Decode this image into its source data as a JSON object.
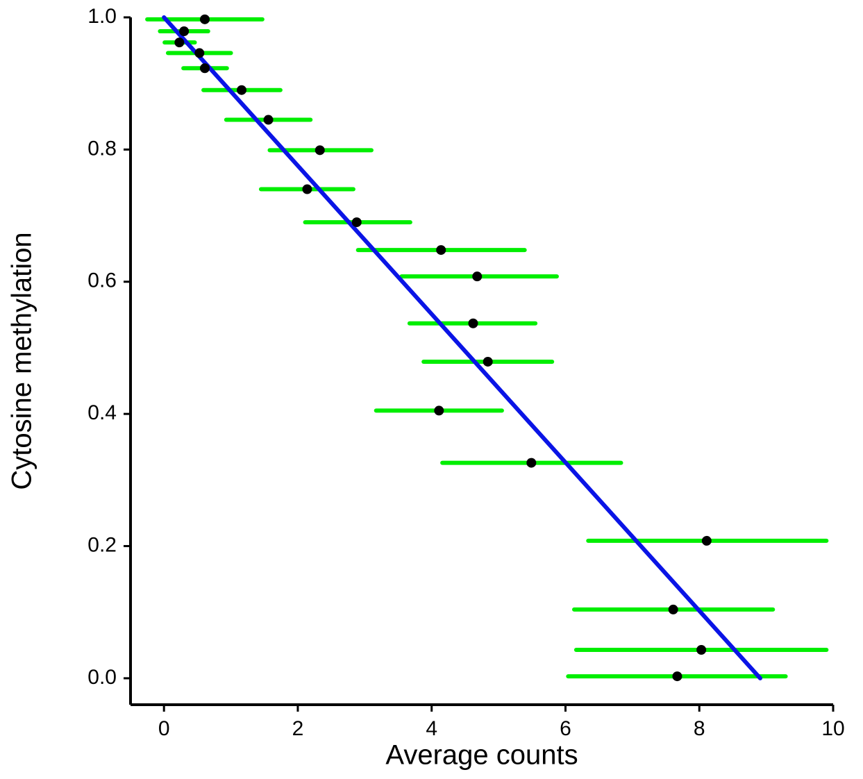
{
  "chart_data": {
    "type": "scatter",
    "x_label": "Average counts",
    "y_label": "Cytosine methylation",
    "xlim": [
      -0.5,
      10
    ],
    "ylim": [
      -0.04,
      1.0
    ],
    "xticks": [
      0,
      2,
      4,
      6,
      8,
      10
    ],
    "yticks": [
      {
        "value": 0,
        "label": "0.0"
      },
      0.2,
      0.4,
      0.6,
      0.8,
      {
        "value": 1,
        "label": "1.0"
      }
    ],
    "point_color": "#000000",
    "error_color": "#00ee00",
    "x": [
      0.61,
      0.3,
      0.23,
      0.53,
      0.61,
      1.16,
      1.56,
      2.33,
      2.14,
      2.88,
      4.14,
      4.68,
      4.62,
      4.84,
      4.11,
      5.49,
      8.11,
      7.61,
      8.03,
      7.67
    ],
    "values": [
      0.997,
      0.979,
      0.962,
      0.946,
      0.923,
      0.89,
      0.845,
      0.799,
      0.74,
      0.69,
      0.648,
      0.608,
      0.537,
      0.479,
      0.405,
      0.326,
      0.208,
      0.104,
      0.043,
      0.003
    ],
    "xmin": [
      -0.25,
      -0.06,
      0.01,
      0.06,
      0.29,
      0.59,
      0.93,
      1.58,
      1.45,
      2.11,
      2.9,
      3.55,
      3.67,
      3.88,
      3.17,
      4.16,
      6.34,
      6.13,
      6.16,
      6.04
    ],
    "xmax": [
      1.47,
      0.66,
      0.46,
      1.0,
      0.94,
      1.74,
      2.19,
      3.1,
      2.83,
      3.68,
      5.39,
      5.87,
      5.55,
      5.8,
      5.05,
      6.83,
      9.9,
      9.1,
      9.9,
      9.29
    ],
    "fit": {
      "x": [
        0,
        8.91
      ],
      "values": [
        1.0,
        0.0
      ],
      "color": "#0a14e6"
    }
  }
}
